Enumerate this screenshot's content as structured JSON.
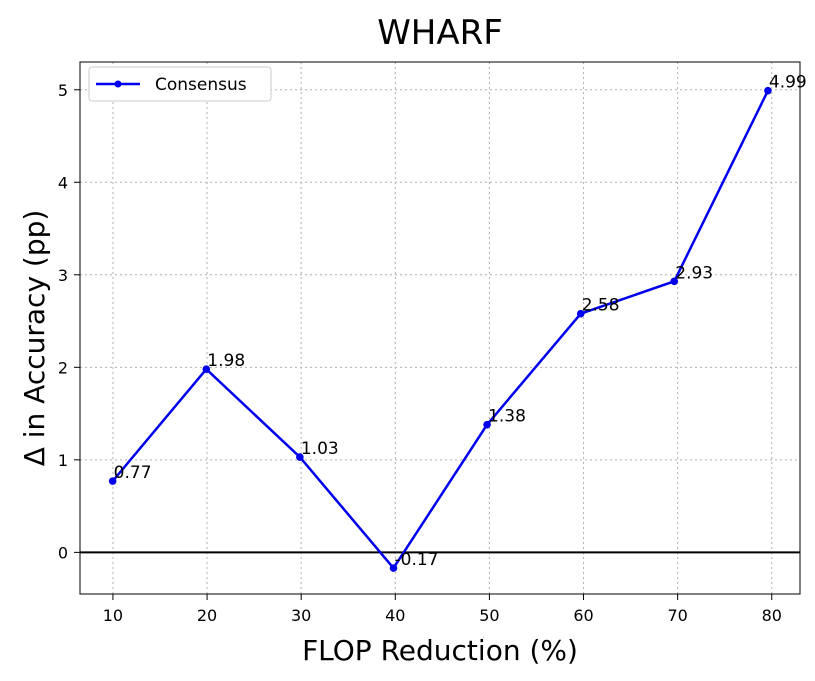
{
  "chart_data": {
    "type": "line",
    "title": "WHARF",
    "xlabel": "FLOP Reduction (%)",
    "ylabel": "Δ in Accuracy (pp)",
    "xlim": [
      6.5,
      83
    ],
    "ylim": [
      -0.45,
      5.3
    ],
    "xticks": [
      10,
      20,
      30,
      40,
      50,
      60,
      70,
      80
    ],
    "yticks": [
      0,
      1,
      2,
      3,
      4,
      5
    ],
    "grid": true,
    "legend_position": "upper-left",
    "zero_line": true,
    "series": [
      {
        "name": "Consensus",
        "color": "#0000ee",
        "marker": "circle",
        "x": [
          9.97,
          19.92,
          29.86,
          39.81,
          49.75,
          59.7,
          69.64,
          79.59
        ],
        "y": [
          0.77,
          1.98,
          1.03,
          -0.17,
          1.38,
          2.58,
          2.93,
          4.99
        ],
        "labels": [
          "0.77",
          "1.98",
          "1.03",
          "-0.17",
          "1.38",
          "2.58",
          "2.93",
          "4.99"
        ]
      }
    ]
  }
}
